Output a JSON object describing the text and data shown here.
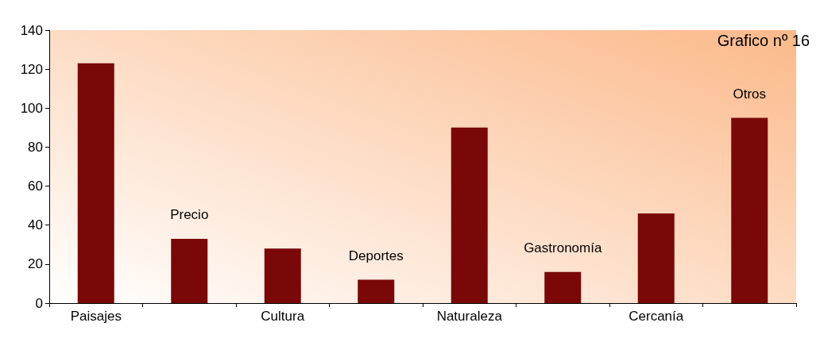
{
  "chart_data": {
    "type": "bar",
    "title": "Grafico nº 16",
    "categories": [
      "Paisajes",
      "Precio",
      "Cultura",
      "Deportes",
      "Naturaleza",
      "Gastronomía",
      "Cercanía",
      "Otros"
    ],
    "values": [
      123,
      33,
      28,
      12,
      90,
      16,
      46,
      95
    ],
    "color": "#7a0808",
    "ylim": [
      0,
      140
    ],
    "yticks": [
      0,
      20,
      40,
      60,
      80,
      100,
      120,
      140
    ],
    "grid": false
  }
}
